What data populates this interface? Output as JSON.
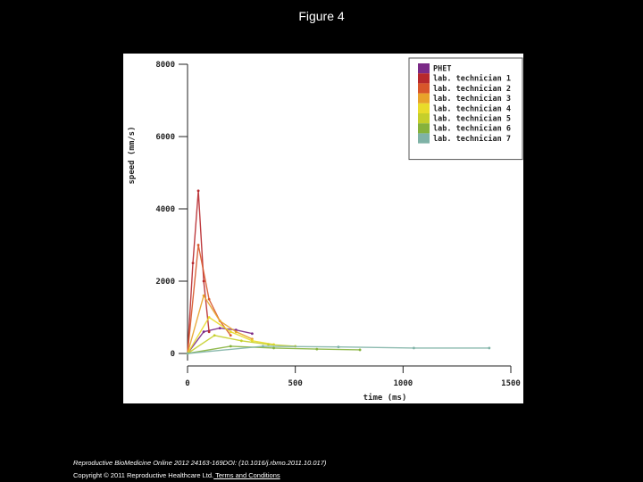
{
  "figure": {
    "title": "Figure 4"
  },
  "footer": {
    "citation": "Reproductive BioMedicine Online 2012 24163-169DOI: (10.1016/j.rbmo.2011.10.017)",
    "copyright": "Copyright © 2011 Reproductive Healthcare Ltd.",
    "terms_link": " Terms and Conditions"
  },
  "chart_data": {
    "type": "line",
    "xlabel": "time (ms)",
    "ylabel": "speed (mm/s)",
    "xlim": [
      0,
      1500
    ],
    "ylim": [
      0,
      8000
    ],
    "x_ticks": [
      0,
      500,
      1000,
      1500
    ],
    "y_ticks": [
      0,
      2000,
      4000,
      6000,
      8000
    ],
    "x_tick_labels": [
      "0",
      "500",
      "1000",
      "1500"
    ],
    "y_tick_labels": [
      "0",
      "2000",
      "4000",
      "6000",
      "8000"
    ],
    "grid": false,
    "legend_position": "top-right",
    "series": [
      {
        "name": "PHET",
        "color": "#7b2a87",
        "x": [
          0,
          75,
          150,
          225,
          300
        ],
        "y": [
          0,
          600,
          700,
          650,
          550
        ]
      },
      {
        "name": "lab. technician 1",
        "color": "#b7282c",
        "x": [
          0,
          25,
          50,
          75,
          100
        ],
        "y": [
          0,
          2500,
          4500,
          2000,
          600
        ]
      },
      {
        "name": "lab. technician 2",
        "color": "#d8562a",
        "x": [
          0,
          50,
          100,
          150,
          200
        ],
        "y": [
          0,
          3000,
          1500,
          900,
          500
        ]
      },
      {
        "name": "lab. technician 3",
        "color": "#e8a32a",
        "x": [
          0,
          75,
          150,
          225,
          300
        ],
        "y": [
          0,
          1600,
          900,
          600,
          400
        ]
      },
      {
        "name": "lab. technician 4",
        "color": "#e9dc2a",
        "x": [
          0,
          100,
          200,
          300,
          400
        ],
        "y": [
          0,
          1000,
          600,
          350,
          250
        ]
      },
      {
        "name": "lab. technician 5",
        "color": "#c5cf2b",
        "x": [
          0,
          125,
          250,
          375,
          500
        ],
        "y": [
          0,
          500,
          350,
          250,
          200
        ]
      },
      {
        "name": "lab. technician 6",
        "color": "#86b23c",
        "x": [
          0,
          200,
          400,
          600,
          800
        ],
        "y": [
          0,
          200,
          150,
          120,
          100
        ]
      },
      {
        "name": "lab. technician 7",
        "color": "#7fb2a6",
        "x": [
          0,
          350,
          700,
          1050,
          1400
        ],
        "y": [
          0,
          200,
          180,
          150,
          150
        ]
      }
    ]
  }
}
